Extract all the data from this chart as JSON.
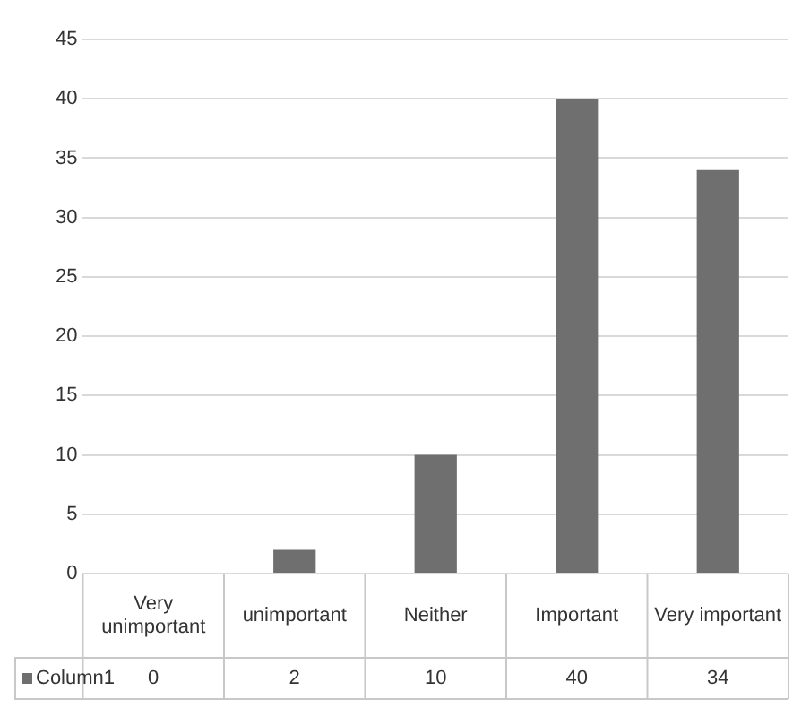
{
  "chart_data": {
    "type": "bar",
    "categories": [
      "Very unimportant",
      "unimportant",
      "Neither",
      "Important",
      "Very important"
    ],
    "series": [
      {
        "name": "Column1",
        "color": "#6f6f6f",
        "values": [
          0,
          2,
          10,
          40,
          34
        ]
      }
    ],
    "ylim": [
      0,
      45
    ],
    "yticks": [
      0,
      5,
      10,
      15,
      20,
      25,
      30,
      35,
      40,
      45
    ],
    "grid": "y",
    "legend": "bottom",
    "data_labels": true
  }
}
